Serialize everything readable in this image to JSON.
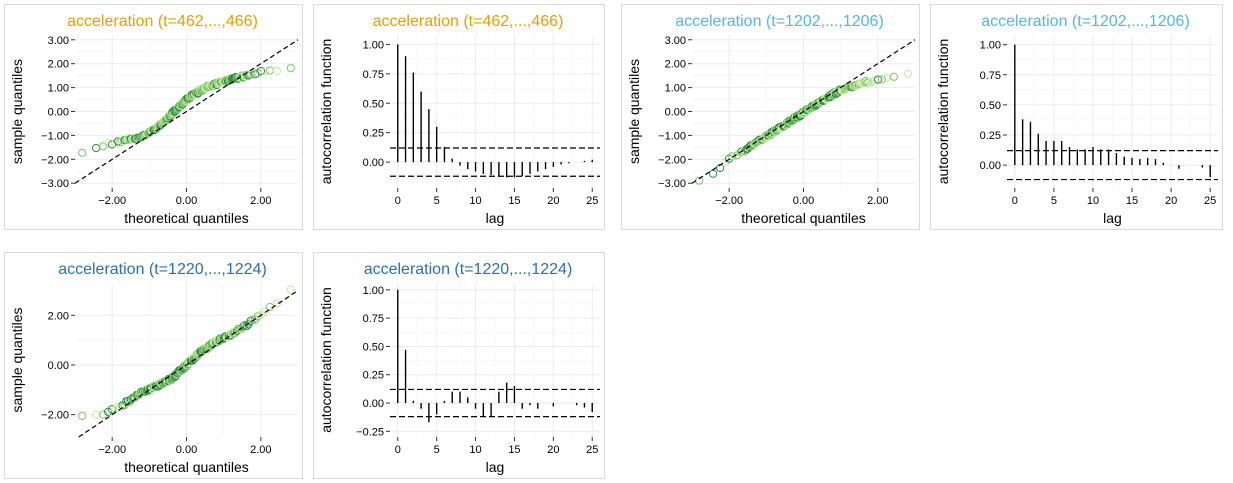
{
  "colors": {
    "orange": "#e69f00",
    "sky": "#56b4e9",
    "blue": "#2c6fb0",
    "point_light": "#c7e9a0",
    "point_mid": "#7cc46b",
    "point_dark": "#2e8b43",
    "grid": "#ebebeb",
    "ink": "#000000"
  },
  "chart_data": [
    {
      "type": "scatter",
      "kind": "qq",
      "title": "acceleration (t=462,...,466)",
      "title_color": "orange",
      "xlabel": "theoretical quantiles",
      "ylabel": "sample quantiles",
      "xlim": [
        -3.0,
        3.0
      ],
      "ylim": [
        -3.2,
        3.2
      ],
      "xticks": [
        -2.0,
        0.0,
        2.0
      ],
      "xtick_labels": [
        "−2.00",
        "0.00",
        "2.00"
      ],
      "yticks": [
        -3,
        -2,
        -1,
        0,
        1,
        2,
        3
      ],
      "ytick_labels": [
        "−3.00",
        "−2.00",
        "−1.00",
        "0.00",
        "1.00",
        "2.00",
        "3.00"
      ],
      "reference_line": {
        "slope": 1,
        "intercept": 0
      },
      "quantile_curve": [
        [
          -2.8,
          -1.75
        ],
        [
          -2.3,
          -1.45
        ],
        [
          -1.8,
          -1.25
        ],
        [
          -1.2,
          -1.05
        ],
        [
          -0.8,
          -0.7
        ],
        [
          -0.4,
          -0.1
        ],
        [
          0.0,
          0.5
        ],
        [
          0.5,
          1.0
        ],
        [
          1.0,
          1.25
        ],
        [
          1.5,
          1.45
        ],
        [
          2.0,
          1.65
        ],
        [
          2.5,
          1.75
        ],
        [
          2.85,
          1.85
        ]
      ],
      "grid": true
    },
    {
      "type": "bar",
      "kind": "acf",
      "title": "acceleration (t=462,...,466)",
      "title_color": "orange",
      "xlabel": "lag",
      "ylabel": "autocorrelation function",
      "xlim": [
        -1,
        26
      ],
      "ylim": [
        -0.22,
        1.08
      ],
      "xticks": [
        0,
        5,
        10,
        15,
        20,
        25
      ],
      "xtick_labels": [
        "0",
        "5",
        "10",
        "15",
        "20",
        "25"
      ],
      "yticks": [
        0.0,
        0.25,
        0.5,
        0.75,
        1.0
      ],
      "ytick_labels": [
        "0.00",
        "0.25",
        "0.50",
        "0.75",
        "1.00"
      ],
      "lags": [
        0,
        1,
        2,
        3,
        4,
        5,
        6,
        7,
        8,
        9,
        10,
        11,
        12,
        13,
        14,
        15,
        16,
        17,
        18,
        19,
        20,
        21,
        22,
        23,
        24,
        25
      ],
      "values": [
        1.0,
        0.9,
        0.76,
        0.6,
        0.45,
        0.3,
        0.13,
        0.03,
        -0.03,
        -0.06,
        -0.08,
        -0.1,
        -0.11,
        -0.12,
        -0.13,
        -0.13,
        -0.12,
        -0.1,
        -0.08,
        -0.06,
        -0.04,
        -0.02,
        -0.01,
        0.0,
        0.01,
        0.02
      ],
      "confidence_band": [
        -0.12,
        0.12
      ],
      "grid": true
    },
    {
      "type": "scatter",
      "kind": "qq",
      "title": "acceleration (t=1202,...,1206)",
      "title_color": "sky",
      "xlabel": "theoretical quantiles",
      "ylabel": "sample quantiles",
      "xlim": [
        -3.0,
        3.0
      ],
      "ylim": [
        -3.2,
        3.2
      ],
      "xticks": [
        -2.0,
        0.0,
        2.0
      ],
      "xtick_labels": [
        "−2.00",
        "0.00",
        "2.00"
      ],
      "yticks": [
        -3,
        -2,
        -1,
        0,
        1,
        2,
        3
      ],
      "ytick_labels": [
        "−3.00",
        "−2.00",
        "−1.00",
        "0.00",
        "1.00",
        "2.00",
        "3.00"
      ],
      "reference_line": {
        "slope": 1,
        "intercept": 0
      },
      "quantile_curve": [
        [
          -2.85,
          -2.9
        ],
        [
          -2.4,
          -2.55
        ],
        [
          -2.0,
          -2.0
        ],
        [
          -1.5,
          -1.55
        ],
        [
          -1.0,
          -1.05
        ],
        [
          -0.5,
          -0.55
        ],
        [
          0.0,
          -0.05
        ],
        [
          0.5,
          0.45
        ],
        [
          1.0,
          0.9
        ],
        [
          1.5,
          1.15
        ],
        [
          2.0,
          1.35
        ],
        [
          2.5,
          1.5
        ],
        [
          2.85,
          1.65
        ]
      ],
      "grid": true
    },
    {
      "type": "bar",
      "kind": "acf",
      "title": "acceleration (t=1202,...,1206)",
      "title_color": "sky",
      "xlabel": "lag",
      "ylabel": "autocorrelation function",
      "xlim": [
        -1,
        26
      ],
      "ylim": [
        -0.19,
        1.08
      ],
      "xticks": [
        0,
        5,
        10,
        15,
        20,
        25
      ],
      "xtick_labels": [
        "0",
        "5",
        "10",
        "15",
        "20",
        "25"
      ],
      "yticks": [
        0.0,
        0.25,
        0.5,
        0.75,
        1.0
      ],
      "ytick_labels": [
        "0.00",
        "0.25",
        "0.50",
        "0.75",
        "1.00"
      ],
      "lags": [
        0,
        1,
        2,
        3,
        4,
        5,
        6,
        7,
        8,
        9,
        10,
        11,
        12,
        13,
        14,
        15,
        16,
        17,
        18,
        19,
        20,
        21,
        22,
        23,
        24,
        25
      ],
      "values": [
        1.0,
        0.38,
        0.36,
        0.26,
        0.2,
        0.2,
        0.2,
        0.15,
        0.13,
        0.13,
        0.15,
        0.13,
        0.13,
        0.1,
        0.07,
        0.06,
        0.05,
        0.06,
        0.05,
        0.02,
        0.0,
        -0.03,
        0.0,
        0.0,
        -0.02,
        -0.1
      ],
      "confidence_band": [
        -0.12,
        0.12
      ],
      "grid": true
    },
    {
      "type": "scatter",
      "kind": "qq",
      "title": "acceleration (t=1220,...,1224)",
      "title_color": "blue",
      "xlabel": "theoretical quantiles",
      "ylabel": "sample quantiles",
      "xlim": [
        -3.0,
        3.0
      ],
      "ylim": [
        -2.9,
        3.3
      ],
      "xticks": [
        -2.0,
        0.0,
        2.0
      ],
      "xtick_labels": [
        "−2.00",
        "0.00",
        "2.00"
      ],
      "yticks": [
        -2,
        0,
        2
      ],
      "ytick_labels": [
        "−2.00",
        "0.00",
        "2.00"
      ],
      "reference_line": {
        "slope": 1,
        "intercept": 0
      },
      "quantile_curve": [
        [
          -2.85,
          -2.1
        ],
        [
          -2.3,
          -2.0
        ],
        [
          -1.8,
          -1.7
        ],
        [
          -1.2,
          -1.1
        ],
        [
          -0.8,
          -0.85
        ],
        [
          -0.4,
          -0.55
        ],
        [
          0.0,
          0.0
        ],
        [
          0.4,
          0.55
        ],
        [
          0.8,
          0.95
        ],
        [
          1.2,
          1.25
        ],
        [
          1.6,
          1.6
        ],
        [
          2.0,
          2.0
        ],
        [
          2.5,
          2.6
        ],
        [
          2.85,
          3.05
        ]
      ],
      "grid": true
    },
    {
      "type": "bar",
      "kind": "acf",
      "title": "acceleration (t=1220,...,1224)",
      "title_color": "blue",
      "xlabel": "lag",
      "ylabel": "autocorrelation function",
      "xlim": [
        -1,
        26
      ],
      "ylim": [
        -0.3,
        1.06
      ],
      "xticks": [
        0,
        5,
        10,
        15,
        20,
        25
      ],
      "xtick_labels": [
        "0",
        "5",
        "10",
        "15",
        "20",
        "25"
      ],
      "yticks": [
        -0.25,
        0.0,
        0.25,
        0.5,
        0.75,
        1.0
      ],
      "ytick_labels": [
        "−0.25",
        "0.00",
        "0.25",
        "0.50",
        "0.75",
        "1.00"
      ],
      "lags": [
        0,
        1,
        2,
        3,
        4,
        5,
        6,
        7,
        8,
        9,
        10,
        11,
        12,
        13,
        14,
        15,
        16,
        17,
        18,
        19,
        20,
        21,
        22,
        23,
        24,
        25
      ],
      "values": [
        1.0,
        0.47,
        0.02,
        -0.05,
        -0.17,
        -0.1,
        0.02,
        0.1,
        0.1,
        0.05,
        -0.05,
        -0.12,
        -0.12,
        0.1,
        0.18,
        0.15,
        -0.05,
        -0.02,
        -0.05,
        0.0,
        -0.03,
        0.0,
        0.0,
        -0.02,
        -0.04,
        -0.08
      ],
      "confidence_band": [
        -0.12,
        0.12
      ],
      "grid": true
    }
  ]
}
